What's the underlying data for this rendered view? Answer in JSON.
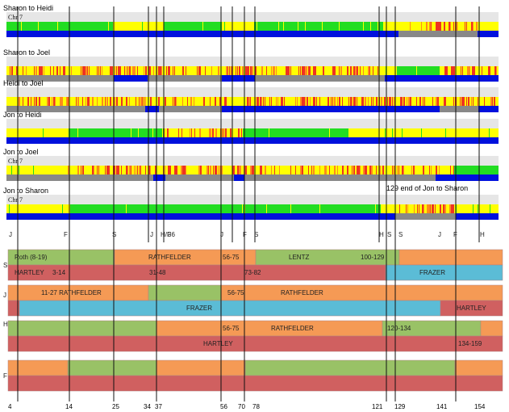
{
  "comparisons": [
    {
      "label": "Sharon to Heidi",
      "chr": "Chr 7"
    },
    {
      "label": "Sharon to Joel",
      "chr": ""
    },
    {
      "label": "Heidi to Joel",
      "chr": ""
    },
    {
      "label": "Jon to Heidi",
      "chr": ""
    },
    {
      "label": "Jon to Joel",
      "chr": "Chr 7"
    },
    {
      "label": "Jon to Sharon",
      "chr": "Chr 7"
    }
  ],
  "annotation": "129 end of Jon to Sharon",
  "marker_labels": [
    "J",
    "F",
    "S",
    "J",
    "H/F",
    "36",
    "J",
    "F",
    "S",
    "H",
    "S",
    "S",
    "J",
    "F",
    "H"
  ],
  "colors": {
    "green": "#22dd22",
    "yellow": "#ffff00",
    "blue": "#0011dd",
    "gray": "#888888",
    "red": "#ee3322",
    "seg_green": "#99c266",
    "seg_orange": "#f59a55",
    "seg_red": "#d06060",
    "seg_blue": "#5bbcd6"
  },
  "bottom_ticks": [
    "4",
    "14",
    "25",
    "34",
    "37",
    "56",
    "70",
    "78",
    "121",
    "129",
    "141",
    "154"
  ],
  "parent_panels": [
    {
      "side": "S",
      "rows": [
        [
          "Roth (8-19)",
          "RATHFELDER",
          "56-75",
          "LENTZ",
          "100-129"
        ],
        [
          "HARTLEY",
          "3-14",
          "31-48",
          "73-82",
          "FRAZER"
        ]
      ]
    },
    {
      "side": "J",
      "rows": [
        [
          "11-27 RATHFELDER",
          "56-75",
          "RATHFELDER"
        ],
        [
          "FRAZER",
          "HARTLEY"
        ]
      ]
    },
    {
      "side": "H",
      "rows": [
        [
          "56-75",
          "RATHFELDER",
          "120-134"
        ],
        [
          "HARTLEY",
          "134-159"
        ]
      ]
    },
    {
      "side": "F",
      "rows": [
        [],
        []
      ]
    }
  ]
}
